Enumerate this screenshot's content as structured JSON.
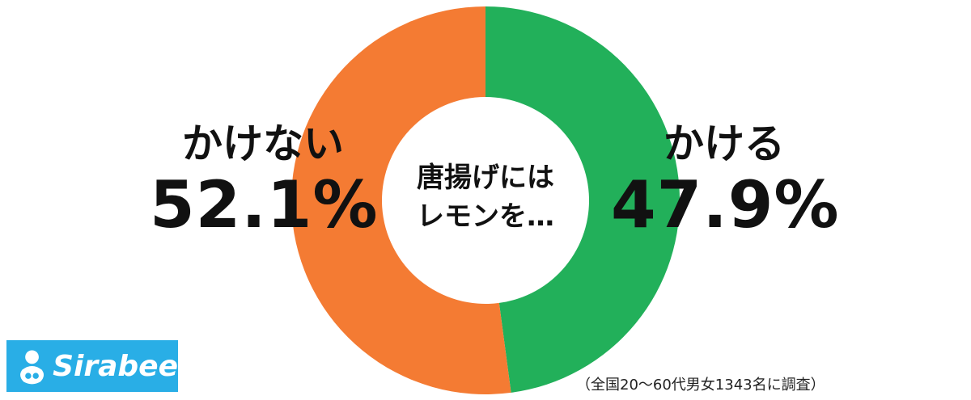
{
  "chart_data": {
    "type": "pie",
    "donut": true,
    "center_text": [
      "唐揚げには",
      "レモンを…"
    ],
    "slices": [
      {
        "name": "かける",
        "value": 47.9,
        "value_label": "47.9%",
        "color": "#22b05a"
      },
      {
        "name": "かけない",
        "value": 52.1,
        "value_label": "52.1%",
        "color": "#f47b33"
      }
    ],
    "start_angle_deg": 0,
    "direction": "clockwise"
  },
  "logo": {
    "text": "Sirabee",
    "color": "#29aee6"
  },
  "footnote": "（全国20～60代男女1343名に調査）"
}
